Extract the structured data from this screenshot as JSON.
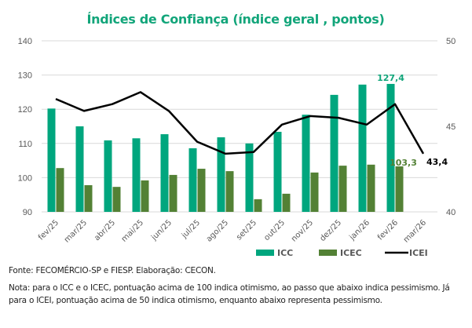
{
  "chart_data": {
    "type": "bar",
    "title": "Índices de Confiança (índice geral , pontos)",
    "xlabel": "",
    "ylabel": "",
    "categories": [
      "fev/25",
      "mar/25",
      "abr/25",
      "mai/25",
      "jun/25",
      "jul/25",
      "ago/25",
      "set/25",
      "out/25",
      "nov/25",
      "dez/25",
      "jan/26",
      "fev/26",
      "mar/26"
    ],
    "left_axis": {
      "ylim": [
        90,
        140
      ],
      "ticks": [
        90,
        100,
        110,
        120,
        130,
        140
      ]
    },
    "right_axis": {
      "ylim": [
        40,
        50
      ],
      "ticks": [
        40,
        45,
        50
      ]
    },
    "grid": true,
    "legend_position": "bottom-right",
    "series": [
      {
        "name": "ICC",
        "type": "bar",
        "axis": "left",
        "color": "#00a67e",
        "values": [
          120.2,
          115.0,
          110.9,
          111.5,
          112.7,
          108.6,
          111.8,
          110.0,
          113.4,
          118.4,
          124.2,
          127.2,
          127.4,
          null
        ]
      },
      {
        "name": "ICEC",
        "type": "bar",
        "axis": "left",
        "color": "#538135",
        "values": [
          102.8,
          97.8,
          97.3,
          99.2,
          100.8,
          102.6,
          101.9,
          93.7,
          95.3,
          101.5,
          103.5,
          103.8,
          103.3,
          null
        ]
      },
      {
        "name": "ICEI",
        "type": "line",
        "axis": "right",
        "color": "#000000",
        "values": [
          46.6,
          45.9,
          46.3,
          47.0,
          45.9,
          44.1,
          43.4,
          43.5,
          45.1,
          45.6,
          45.5,
          45.1,
          46.3,
          43.4
        ]
      }
    ],
    "data_labels": [
      {
        "series": "ICC",
        "category": "fev/26",
        "text": "127,4",
        "color": "#12a57a"
      },
      {
        "series": "ICEC",
        "category": "fev/26",
        "text": "103,3",
        "color": "#538135"
      },
      {
        "series": "ICEI",
        "category": "mar/26",
        "text": "43,4",
        "color": "#000000"
      }
    ]
  },
  "colors": {
    "title": "#12a57a",
    "grid": "#d9d9d9",
    "axis_text": "#595959"
  },
  "notes": {
    "source": "Fonte: FECOMÉRCIO-SP e FIESP. Elaboração: CECON.",
    "note": "Nota: para o ICC e o ICEC, pontuação acima de 100 indica otimismo, ao passo que abaixo indica pessimismo. Já para o ICEI, pontuação acima de 50 indica otimismo, enquanto abaixo representa pessimismo."
  }
}
